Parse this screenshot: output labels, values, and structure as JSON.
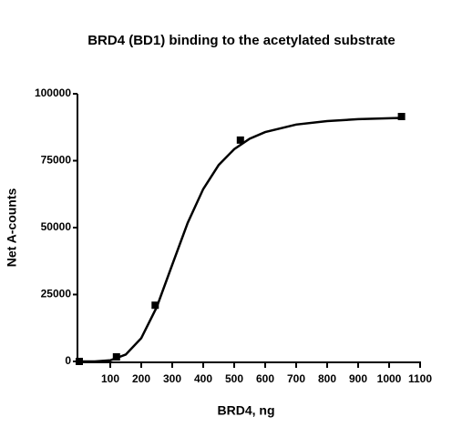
{
  "chart_data": {
    "type": "scatter",
    "title": "BRD4 (BD1) binding to the acetylated substrate",
    "x_label": "BRD4, ng",
    "y_label": "Net A-counts",
    "series": [
      {
        "type": "scatter",
        "color": "#000000",
        "x": [
          0,
          120,
          245,
          520,
          1040
        ],
        "values": [
          0,
          1700,
          21000,
          82700,
          91500
        ]
      },
      {
        "type": "line",
        "color": "#000000",
        "x": [
          0,
          50,
          100,
          150,
          200,
          250,
          300,
          350,
          400,
          450,
          500,
          550,
          600,
          700,
          800,
          900,
          1040
        ],
        "values": [
          0,
          19,
          424,
          2560,
          8700,
          20300,
          36100,
          51800,
          64400,
          73400,
          79300,
          83200,
          85700,
          88500,
          89800,
          90500,
          91000
        ]
      }
    ],
    "xlim": [
      0,
      1100
    ],
    "xticks": [
      100,
      200,
      300,
      400,
      500,
      600,
      700,
      800,
      900,
      1000,
      1100
    ],
    "ylim": [
      0,
      100000
    ],
    "yticks": [
      0,
      25000,
      50000,
      75000,
      100000
    ]
  }
}
